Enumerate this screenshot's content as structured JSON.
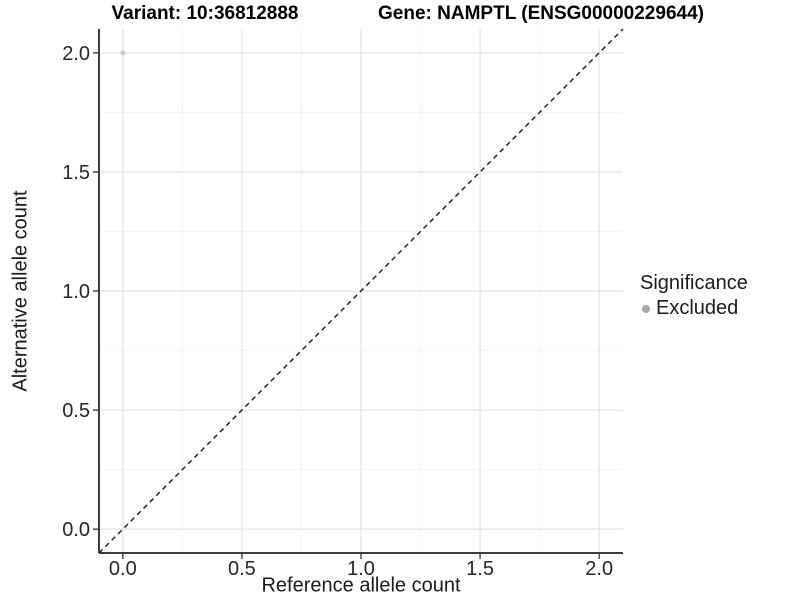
{
  "chart_data": {
    "type": "scatter",
    "title_left": "Variant: 10:36812888",
    "title_right": "Gene: NAMPTL (ENSG00000229644)",
    "xlabel": "Reference allele count",
    "ylabel": "Alternative allele count",
    "xlim": [
      -0.1,
      2.1
    ],
    "ylim": [
      -0.1,
      2.1
    ],
    "x_ticks": [
      0,
      0.5,
      1,
      1.5,
      2
    ],
    "x_tick_labels": [
      "0.0",
      "0.5",
      "1.0",
      "1.5",
      "2.0"
    ],
    "y_ticks": [
      0,
      0.5,
      1,
      1.5,
      2
    ],
    "y_tick_labels": [
      "0.0",
      "0.5",
      "1.0",
      "1.5",
      "2.0"
    ],
    "x_minor_ticks": [
      0.25,
      0.75,
      1.25,
      1.75
    ],
    "y_minor_ticks": [
      0.25,
      0.75,
      1.25,
      1.75
    ],
    "grid": "major+minor",
    "series": [
      {
        "name": "Excluded",
        "marker": "circle",
        "color": "#c4c4c4",
        "point_radius": 2.3,
        "points": [
          {
            "x": 0.0,
            "y": 2.0
          }
        ]
      }
    ],
    "reference_line": {
      "style": "dashed",
      "color": "#262626",
      "from": [
        -0.1,
        -0.1
      ],
      "to": [
        2.1,
        2.1
      ]
    },
    "legend": {
      "position": "right",
      "title": "Significance",
      "entries": [
        {
          "label": "Excluded",
          "color": "#a8a8a8"
        }
      ]
    },
    "colors": {
      "background": "#ffffff",
      "grid_major": "#e6e6e6",
      "grid_minor": "#f3f3f3",
      "axis_line": "#3c3c3c",
      "tick_label": "#262626"
    }
  }
}
